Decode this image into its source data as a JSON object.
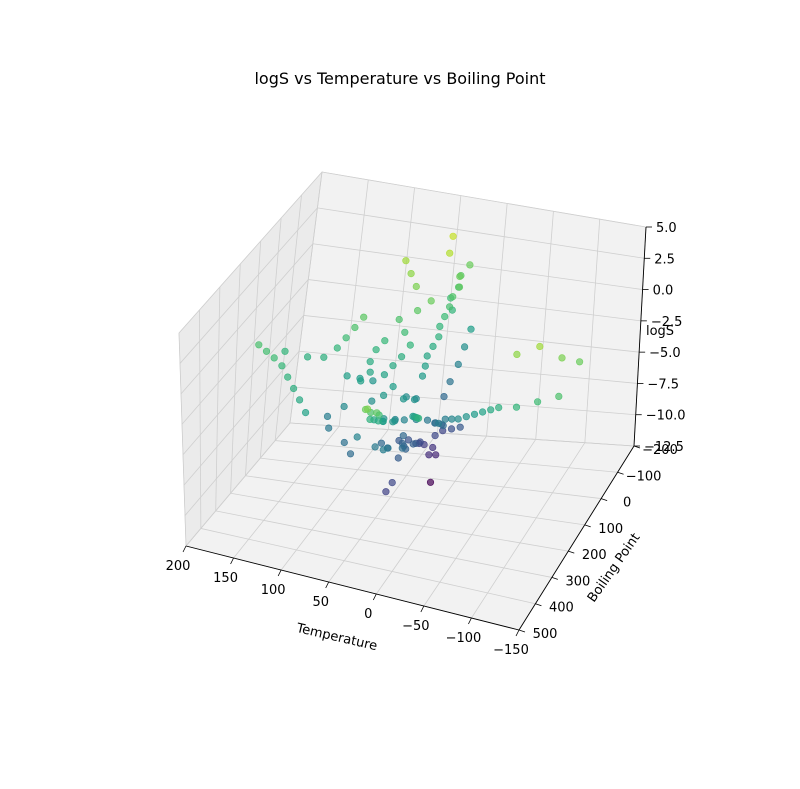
{
  "chart_data": {
    "type": "scatter",
    "projection": "3d",
    "title": "logS vs Temperature vs Boiling Point",
    "xlabel": "Temperature",
    "ylabel": "Boiling Point",
    "zlabel": "logS",
    "xlim": [
      -150,
      200
    ],
    "ylim": [
      -200,
      500
    ],
    "zlim": [
      -12.5,
      5.0
    ],
    "x_ticks": [
      "200",
      "150",
      "100",
      "50",
      "0",
      "−50",
      "−100",
      "−150"
    ],
    "y_ticks": [
      "−200",
      "−100",
      "0",
      "100",
      "200",
      "300",
      "400",
      "500"
    ],
    "z_ticks": [
      "5.0",
      "2.5",
      "0.0",
      "−2.5",
      "−5.0",
      "−7.5",
      "−10.0",
      "−12.5"
    ],
    "colormap": "viridis",
    "color_by": "logS",
    "grid": true,
    "points": [
      [
        25,
        0,
        -12.8
      ],
      [
        20,
        10,
        -10.5
      ],
      [
        24,
        30,
        -10.2
      ],
      [
        22,
        20,
        -9.8
      ],
      [
        28,
        40,
        -9.3
      ],
      [
        30,
        60,
        -8.9
      ],
      [
        18,
        35,
        -8.6
      ],
      [
        26,
        80,
        -8.4
      ],
      [
        35,
        100,
        -8.0
      ],
      [
        24,
        120,
        -7.8
      ],
      [
        40,
        130,
        -7.6
      ],
      [
        22,
        150,
        -7.3
      ],
      [
        30,
        170,
        -7.0
      ],
      [
        25,
        190,
        -6.8
      ],
      [
        45,
        210,
        -6.5
      ],
      [
        20,
        230,
        -6.2
      ],
      [
        32,
        250,
        -6.0
      ],
      [
        28,
        270,
        -5.6
      ],
      [
        38,
        290,
        -5.3
      ],
      [
        26,
        310,
        -5.0
      ],
      [
        24,
        200,
        -4.6
      ],
      [
        30,
        220,
        -4.3
      ],
      [
        27,
        240,
        -4.0
      ],
      [
        35,
        260,
        -3.6
      ],
      [
        22,
        280,
        -3.3
      ],
      [
        29,
        300,
        -3.0
      ],
      [
        25,
        320,
        -2.6
      ],
      [
        31,
        340,
        -2.2
      ],
      [
        23,
        360,
        -1.8
      ],
      [
        28,
        380,
        -1.4
      ],
      [
        26,
        120,
        -4.4
      ],
      [
        33,
        140,
        -4.0
      ],
      [
        21,
        160,
        -3.7
      ],
      [
        29,
        180,
        -3.4
      ],
      [
        24,
        100,
        -3.0
      ],
      [
        25,
        80,
        -2.6
      ],
      [
        27,
        60,
        -2.2
      ],
      [
        25,
        40,
        -1.8
      ],
      [
        23,
        20,
        -1.4
      ],
      [
        26,
        0,
        -1.0
      ],
      [
        25,
        -20,
        -0.6
      ],
      [
        24,
        -40,
        -0.2
      ],
      [
        25,
        -60,
        0.2
      ],
      [
        22,
        -80,
        0.6
      ],
      [
        26,
        -100,
        1.0
      ],
      [
        100,
        350,
        -2.5
      ],
      [
        110,
        330,
        -2.0
      ],
      [
        120,
        310,
        -1.6
      ],
      [
        130,
        290,
        -1.2
      ],
      [
        140,
        270,
        -0.8
      ],
      [
        150,
        260,
        -0.5
      ],
      [
        160,
        250,
        -0.3
      ],
      [
        170,
        240,
        -0.1
      ],
      [
        150,
        200,
        -1.0
      ],
      [
        130,
        180,
        -1.5
      ],
      [
        80,
        150,
        -3.0
      ],
      [
        90,
        170,
        -2.6
      ],
      [
        70,
        130,
        -3.4
      ],
      [
        60,
        190,
        -3.8
      ],
      [
        85,
        210,
        -4.2
      ],
      [
        100,
        220,
        -5.0
      ],
      [
        95,
        240,
        -5.5
      ],
      [
        75,
        260,
        -6.0
      ],
      [
        65,
        280,
        -6.4
      ],
      [
        55,
        300,
        -4.6
      ],
      [
        40,
        90,
        -1.0
      ],
      [
        50,
        70,
        -0.5
      ],
      [
        60,
        50,
        0.0
      ],
      [
        45,
        30,
        0.5
      ],
      [
        35,
        10,
        1.0
      ],
      [
        55,
        -10,
        1.5
      ],
      [
        65,
        -30,
        2.0
      ],
      [
        75,
        -50,
        2.5
      ],
      [
        35,
        -80,
        3.0
      ],
      [
        40,
        -120,
        3.5
      ],
      [
        25,
        -150,
        1.0
      ],
      [
        30,
        -130,
        0.5
      ],
      [
        28,
        -110,
        0.0
      ],
      [
        32,
        -90,
        -0.5
      ],
      [
        26,
        -70,
        -1.0
      ],
      [
        -10,
        150,
        -5.0
      ],
      [
        -20,
        170,
        -4.5
      ],
      [
        -30,
        190,
        -4.0
      ],
      [
        -40,
        200,
        -3.5
      ],
      [
        -50,
        210,
        -3.0
      ],
      [
        -60,
        220,
        -2.5
      ],
      [
        -70,
        230,
        -2.0
      ],
      [
        -80,
        240,
        -1.5
      ],
      [
        -100,
        250,
        -1.0
      ],
      [
        -120,
        240,
        -0.5
      ],
      [
        -140,
        230,
        0.0
      ],
      [
        -90,
        200,
        2.0
      ],
      [
        -110,
        180,
        2.5
      ],
      [
        -130,
        160,
        1.5
      ],
      [
        -145,
        140,
        1.0
      ],
      [
        0,
        100,
        -6.5
      ],
      [
        5,
        120,
        -6.0
      ],
      [
        10,
        140,
        -5.5
      ],
      [
        -5,
        160,
        -5.2
      ],
      [
        15,
        180,
        -4.8
      ],
      [
        8,
        60,
        -7.2
      ],
      [
        12,
        80,
        -6.8
      ],
      [
        -8,
        40,
        -7.6
      ],
      [
        4,
        20,
        -8.2
      ],
      [
        16,
        0,
        -8.8
      ],
      [
        20,
        -20,
        -6.6
      ],
      [
        18,
        -40,
        -5.8
      ],
      [
        14,
        -60,
        -4.8
      ],
      [
        12,
        -80,
        -3.8
      ],
      [
        10,
        -100,
        -2.8
      ],
      [
        45,
        110,
        -1.6
      ],
      [
        50,
        130,
        -2.0
      ],
      [
        55,
        150,
        -2.4
      ],
      [
        42,
        170,
        -2.8
      ],
      [
        48,
        190,
        -3.2
      ],
      [
        65,
        100,
        -0.8
      ],
      [
        70,
        120,
        -1.2
      ],
      [
        72,
        140,
        -1.8
      ],
      [
        68,
        160,
        -2.2
      ],
      [
        74,
        180,
        -2.6
      ],
      [
        90,
        90,
        0.5
      ],
      [
        95,
        110,
        0.0
      ],
      [
        100,
        130,
        -0.5
      ],
      [
        105,
        150,
        -1.0
      ],
      [
        115,
        170,
        -1.5
      ],
      [
        5,
        260,
        -3.0
      ],
      [
        0,
        280,
        -2.6
      ],
      [
        -5,
        300,
        -2.2
      ],
      [
        -10,
        320,
        -1.8
      ],
      [
        -15,
        340,
        -1.4
      ],
      [
        15,
        400,
        -0.5
      ],
      [
        20,
        420,
        0.0
      ],
      [
        10,
        440,
        0.5
      ],
      [
        18,
        460,
        1.0
      ],
      [
        12,
        480,
        1.5
      ],
      [
        26,
        250,
        -8.6
      ],
      [
        29,
        270,
        -9.0
      ],
      [
        27,
        210,
        -7.4
      ],
      [
        23,
        190,
        -7.0
      ],
      [
        31,
        160,
        -6.6
      ]
    ]
  }
}
